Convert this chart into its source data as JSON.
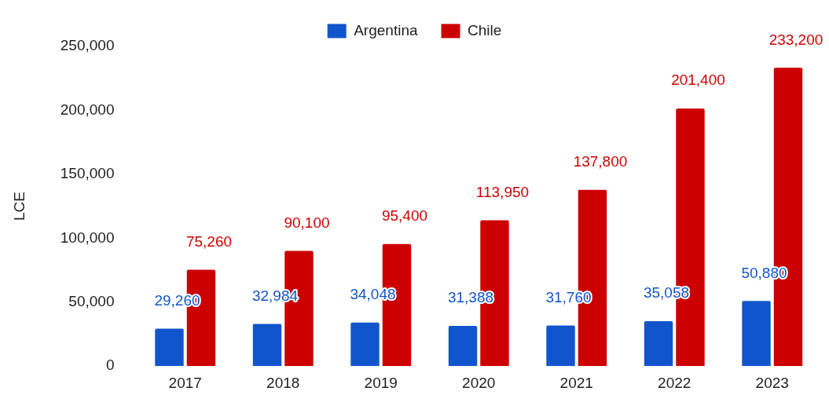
{
  "chart_data": {
    "type": "bar",
    "ylabel": "LCE",
    "categories": [
      "2017",
      "2018",
      "2019",
      "2020",
      "2021",
      "2022",
      "2023"
    ],
    "series": [
      {
        "name": "Argentina",
        "color": "#1155cc",
        "values": [
          29260,
          32984,
          34048,
          31388,
          31760,
          35058,
          50880
        ],
        "value_labels": [
          "29,260",
          "32,984",
          "34,048",
          "31,388",
          "31,760",
          "35,058",
          "50,880"
        ]
      },
      {
        "name": "Chile",
        "color": "#cc0000",
        "values": [
          75260,
          90100,
          95400,
          113950,
          137800,
          201400,
          233200
        ],
        "value_labels": [
          "75,260",
          "90,100",
          "95,400",
          "113,950",
          "137,800",
          "201,400",
          "233,200"
        ]
      }
    ],
    "ylim": [
      0,
      250000
    ],
    "yticks": [
      0,
      {
        "value": 50000,
        "label": "50,000"
      },
      {
        "value": 100000,
        "label": "100,000"
      },
      {
        "value": 150000,
        "label": "150,000"
      },
      {
        "value": 200000,
        "label": "200,000"
      },
      {
        "value": 250000,
        "label": "250,000"
      }
    ],
    "grid": false,
    "legend": "top"
  }
}
